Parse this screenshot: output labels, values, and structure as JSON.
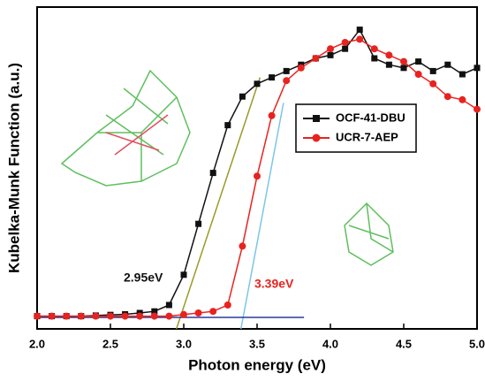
{
  "chart_data": {
    "type": "scatter-line",
    "xlabel": "Photon energy (eV)",
    "ylabel": "Kubelka-Munk Function (a.u.)",
    "x": [
      2.0,
      2.1,
      2.2,
      2.3,
      2.4,
      2.5,
      2.6,
      2.7,
      2.8,
      2.9,
      3.0,
      3.1,
      3.2,
      3.3,
      3.4,
      3.5,
      3.6,
      3.7,
      3.8,
      3.9,
      4.0,
      4.1,
      4.2,
      4.3,
      4.4,
      4.5,
      4.6,
      4.7,
      4.8,
      4.9,
      5.0
    ],
    "series": [
      {
        "name": "OCF-41-DBU",
        "color": "#111111",
        "marker": "square",
        "values": [
          0.04,
          0.04,
          0.04,
          0.04,
          0.042,
          0.044,
          0.046,
          0.05,
          0.055,
          0.075,
          0.17,
          0.33,
          0.49,
          0.64,
          0.73,
          0.77,
          0.79,
          0.81,
          0.83,
          0.85,
          0.86,
          0.88,
          0.94,
          0.85,
          0.83,
          0.82,
          0.84,
          0.81,
          0.83,
          0.8,
          0.82
        ]
      },
      {
        "name": "UCR-7-AEP",
        "color": "#e8231f",
        "marker": "circle",
        "values": [
          0.04,
          0.04,
          0.04,
          0.04,
          0.04,
          0.04,
          0.04,
          0.04,
          0.04,
          0.04,
          0.045,
          0.05,
          0.055,
          0.075,
          0.26,
          0.48,
          0.67,
          0.78,
          0.82,
          0.85,
          0.88,
          0.9,
          0.91,
          0.88,
          0.86,
          0.84,
          0.8,
          0.77,
          0.73,
          0.72,
          0.69
        ]
      }
    ],
    "fits": [
      {
        "color": "#9a9a2a",
        "x": [
          2.95,
          3.52
        ],
        "values": [
          0,
          0.79
        ]
      },
      {
        "color": "#7cc6e6",
        "x": [
          3.39,
          3.68
        ],
        "values": [
          0,
          0.71
        ]
      },
      {
        "color": "#2b3a9a",
        "x": [
          2.0,
          3.82
        ],
        "values": [
          0.036,
          0.036
        ]
      }
    ],
    "annotations": [
      {
        "text": "2.95eV",
        "color": "#111111"
      },
      {
        "text": "3.39eV",
        "color": "#e8231f"
      }
    ],
    "xlim": [
      2.0,
      5.0
    ],
    "ylim": [
      0,
      1
    ],
    "xticks": [
      {
        "value": 2,
        "label": "2.0"
      },
      2.5,
      {
        "value": 3,
        "label": "3.0"
      },
      3.5,
      {
        "value": 4,
        "label": "4.0"
      },
      4.5,
      {
        "value": 5,
        "label": "5.0"
      }
    ]
  }
}
